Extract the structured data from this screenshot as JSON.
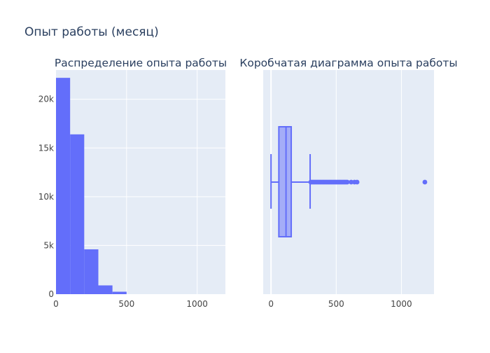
{
  "figure": {
    "title": "Опыт работы (месяц)"
  },
  "colors": {
    "accent": "#636efa",
    "plot_bg": "#e5ecf6",
    "grid": "#ffffff",
    "text": "#2a3f5f",
    "tick_text": "#444444"
  },
  "chart_data": [
    {
      "type": "bar",
      "title": "Распределение опыта работы",
      "xlabel": "",
      "ylabel": "",
      "bin_width": 100,
      "bins_start": [
        0,
        100,
        200,
        300,
        400
      ],
      "values": [
        22200,
        16400,
        4600,
        900,
        250
      ],
      "xlim": [
        0,
        1200
      ],
      "ylim": [
        0,
        23000
      ],
      "x_ticks": [
        0,
        500,
        1000
      ],
      "y_ticks": [
        0,
        5000,
        10000,
        15000,
        20000
      ],
      "y_tick_labels": [
        "0",
        "5k",
        "10k",
        "15k",
        "20k"
      ],
      "grid": true
    },
    {
      "type": "box",
      "title": "Коробчатая диаграмма опыта работы",
      "xlabel": "",
      "orientation": "horizontal",
      "whisker_low": 0,
      "q1": 60,
      "median": 115,
      "q3": 155,
      "whisker_high": 300,
      "outliers": [
        305,
        315,
        325,
        335,
        345,
        355,
        365,
        375,
        385,
        395,
        405,
        415,
        425,
        435,
        445,
        455,
        465,
        475,
        485,
        495,
        505,
        515,
        525,
        535,
        545,
        555,
        565,
        575,
        585,
        615,
        640,
        660,
        1180
      ],
      "xlim": [
        -60,
        1250
      ],
      "x_ticks": [
        0,
        500,
        1000
      ],
      "grid": true
    }
  ]
}
